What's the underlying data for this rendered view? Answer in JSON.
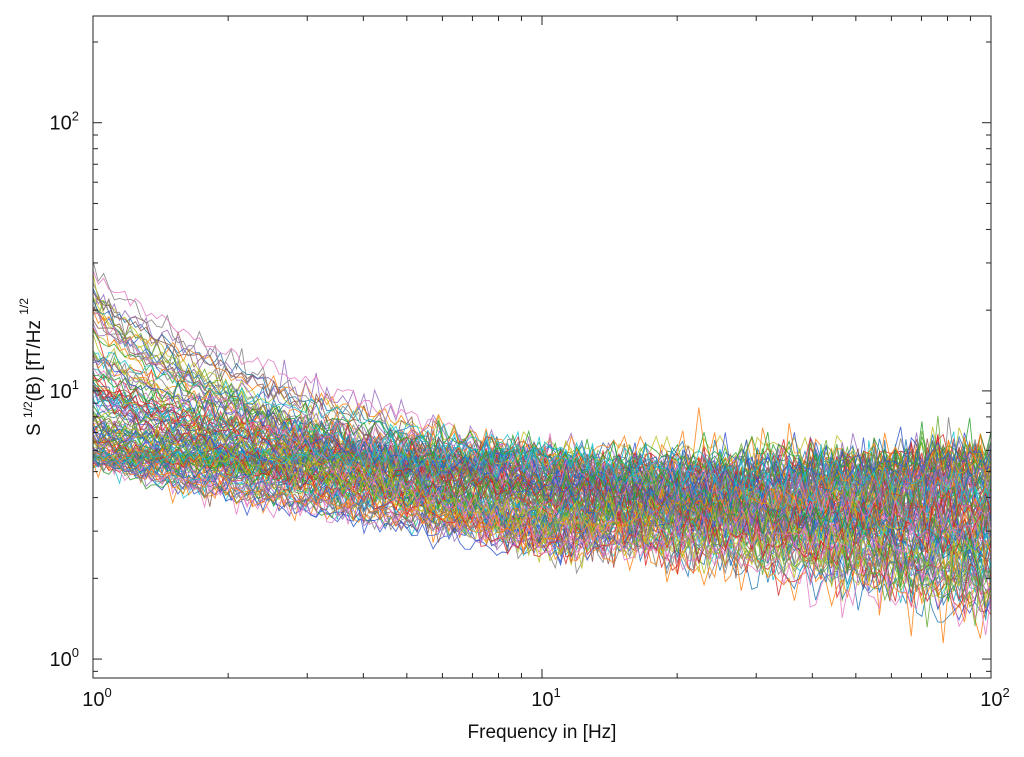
{
  "chart_data": {
    "type": "line",
    "title": "",
    "xlabel": "Frequency in [Hz]",
    "ylabel": "S 1/2(B) [fT/Hz 1/2",
    "ylabel_parts": {
      "pre": "S ",
      "sup1": "1/2",
      "mid": "(B) [fT/Hz ",
      "sup2": "1/2"
    },
    "xscale": "log",
    "yscale": "log",
    "xlim": [
      1,
      100
    ],
    "ylim": [
      0.85,
      250
    ],
    "grid": false,
    "legend": false,
    "x_ticks": [
      {
        "value": 1,
        "base": "10",
        "exp": "0"
      },
      {
        "value": 10,
        "base": "10",
        "exp": "1"
      },
      {
        "value": 100,
        "base": "10",
        "exp": "2"
      }
    ],
    "y_ticks": [
      {
        "value": 1,
        "base": "10",
        "exp": "0"
      },
      {
        "value": 10,
        "base": "10",
        "exp": "1"
      },
      {
        "value": 100,
        "base": "10",
        "exp": "2"
      }
    ],
    "colors": [
      "#1f77b4",
      "#2ca02c",
      "#d62728",
      "#17becf",
      "#9467bd",
      "#bcbd22",
      "#7f7f7f",
      "#e377c2",
      "#ff7f0e",
      "#3355cc",
      "#8c564b",
      "#66aa33"
    ],
    "series_model": {
      "count": 140,
      "x_start": 1,
      "x_end": 100,
      "points": 170,
      "value_at_1Hz_range": [
        5.5,
        32
      ],
      "value_at_10Hz_range": [
        2.5,
        6
      ],
      "value_at_100Hz_range": [
        1.5,
        6
      ],
      "note_visible_spikes": [
        {
          "x": 7.2,
          "y": 8
        },
        {
          "x": 2.7,
          "y": 13.5
        },
        {
          "x": 50,
          "y": 7
        }
      ]
    }
  }
}
